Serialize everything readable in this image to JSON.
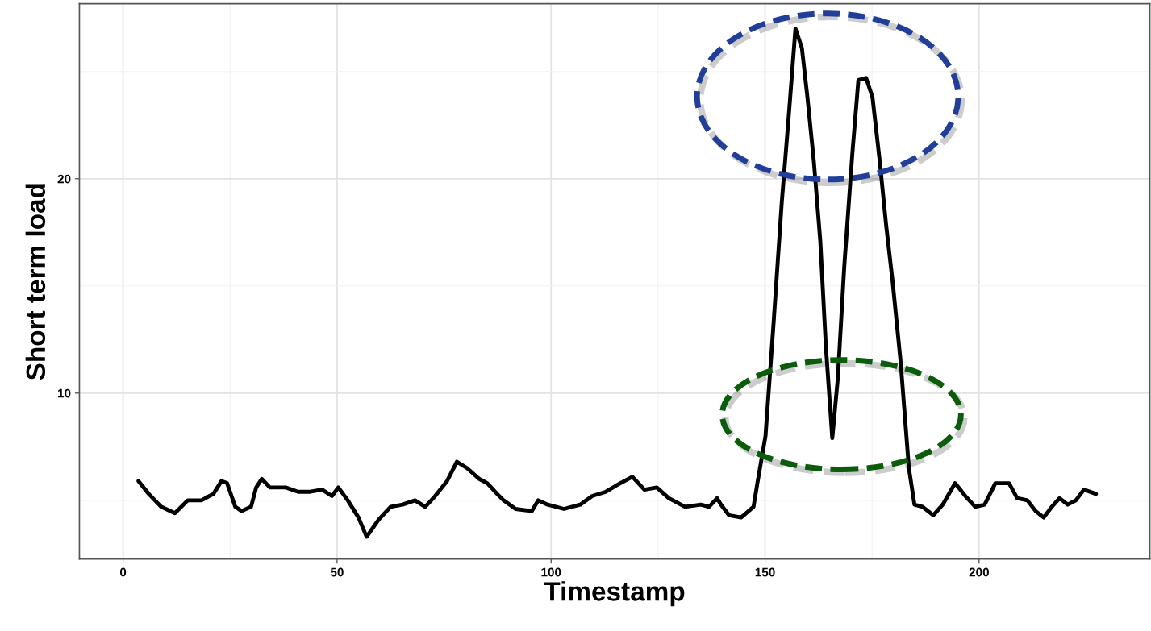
{
  "chart_data": {
    "type": "line",
    "xlabel": "Timestamp",
    "ylabel": "Short term load",
    "xlim": [
      -10.2,
      239.9
    ],
    "ylim": [
      2.26,
      28.16
    ],
    "xticks": [
      0,
      50,
      100,
      150,
      200
    ],
    "yticks": [
      10,
      20
    ],
    "grid": true,
    "line_style": "solid",
    "marker": "none",
    "series": [
      {
        "color": "#000000",
        "x": [
          3.6,
          6.0,
          8.9,
          12.1,
          15.1,
          18.3,
          21.1,
          23.0,
          24.3,
          26.2,
          27.7,
          29.9,
          31.1,
          32.4,
          34.3,
          38.0,
          40.9,
          43.7,
          46.5,
          48.8,
          50.3,
          52.5,
          55.0,
          56.9,
          59.7,
          62.5,
          65.3,
          68.2,
          70.6,
          72.9,
          75.7,
          78.0,
          80.4,
          83.2,
          85.1,
          87.4,
          88.9,
          91.7,
          95.5,
          97.0,
          99.2,
          103.0,
          106.8,
          109.6,
          112.8,
          115.3,
          119.0,
          121.8,
          124.7,
          127.5,
          131.3,
          135.0,
          136.9,
          138.8,
          139.7,
          141.6,
          144.4,
          147.3,
          148.2,
          150.1,
          152.0,
          153.9,
          155.6,
          157.1,
          158.6,
          159.9,
          161.4,
          162.9,
          164.2,
          165.7,
          167.0,
          168.5,
          170.4,
          171.8,
          173.6,
          175.1,
          176.8,
          178.3,
          179.8,
          181.7,
          183.6,
          184.9,
          186.8,
          189.3,
          191.5,
          194.4,
          196.8,
          199.1,
          201.3,
          203.8,
          207.0,
          208.9,
          211.3,
          213.2,
          215.1,
          217.0,
          218.8,
          220.7,
          222.6,
          224.5,
          227.3
        ],
        "values": [
          5.9,
          5.3,
          4.7,
          4.4,
          5.0,
          5.0,
          5.3,
          5.9,
          5.8,
          4.7,
          4.5,
          4.7,
          5.6,
          6.0,
          5.6,
          5.6,
          5.4,
          5.4,
          5.5,
          5.2,
          5.6,
          5.0,
          4.2,
          3.3,
          4.1,
          4.7,
          4.8,
          5.0,
          4.7,
          5.2,
          5.9,
          6.8,
          6.5,
          6.0,
          5.8,
          5.3,
          5.0,
          4.6,
          4.5,
          5.0,
          4.8,
          4.6,
          4.8,
          5.2,
          5.4,
          5.7,
          6.1,
          5.5,
          5.6,
          5.1,
          4.7,
          4.8,
          4.7,
          5.1,
          4.8,
          4.3,
          4.2,
          4.7,
          5.8,
          8.0,
          13.3,
          18.9,
          23.1,
          27.0,
          26.1,
          23.8,
          20.8,
          17.1,
          12.2,
          7.9,
          10.7,
          15.9,
          21.2,
          24.6,
          24.7,
          23.8,
          20.8,
          17.8,
          15.2,
          11.4,
          6.5,
          4.8,
          4.7,
          4.3,
          4.8,
          5.8,
          5.2,
          4.7,
          4.8,
          5.8,
          5.8,
          5.1,
          5.0,
          4.5,
          4.2,
          4.7,
          5.1,
          4.8,
          5.0,
          5.5,
          5.3
        ]
      }
    ]
  }
}
